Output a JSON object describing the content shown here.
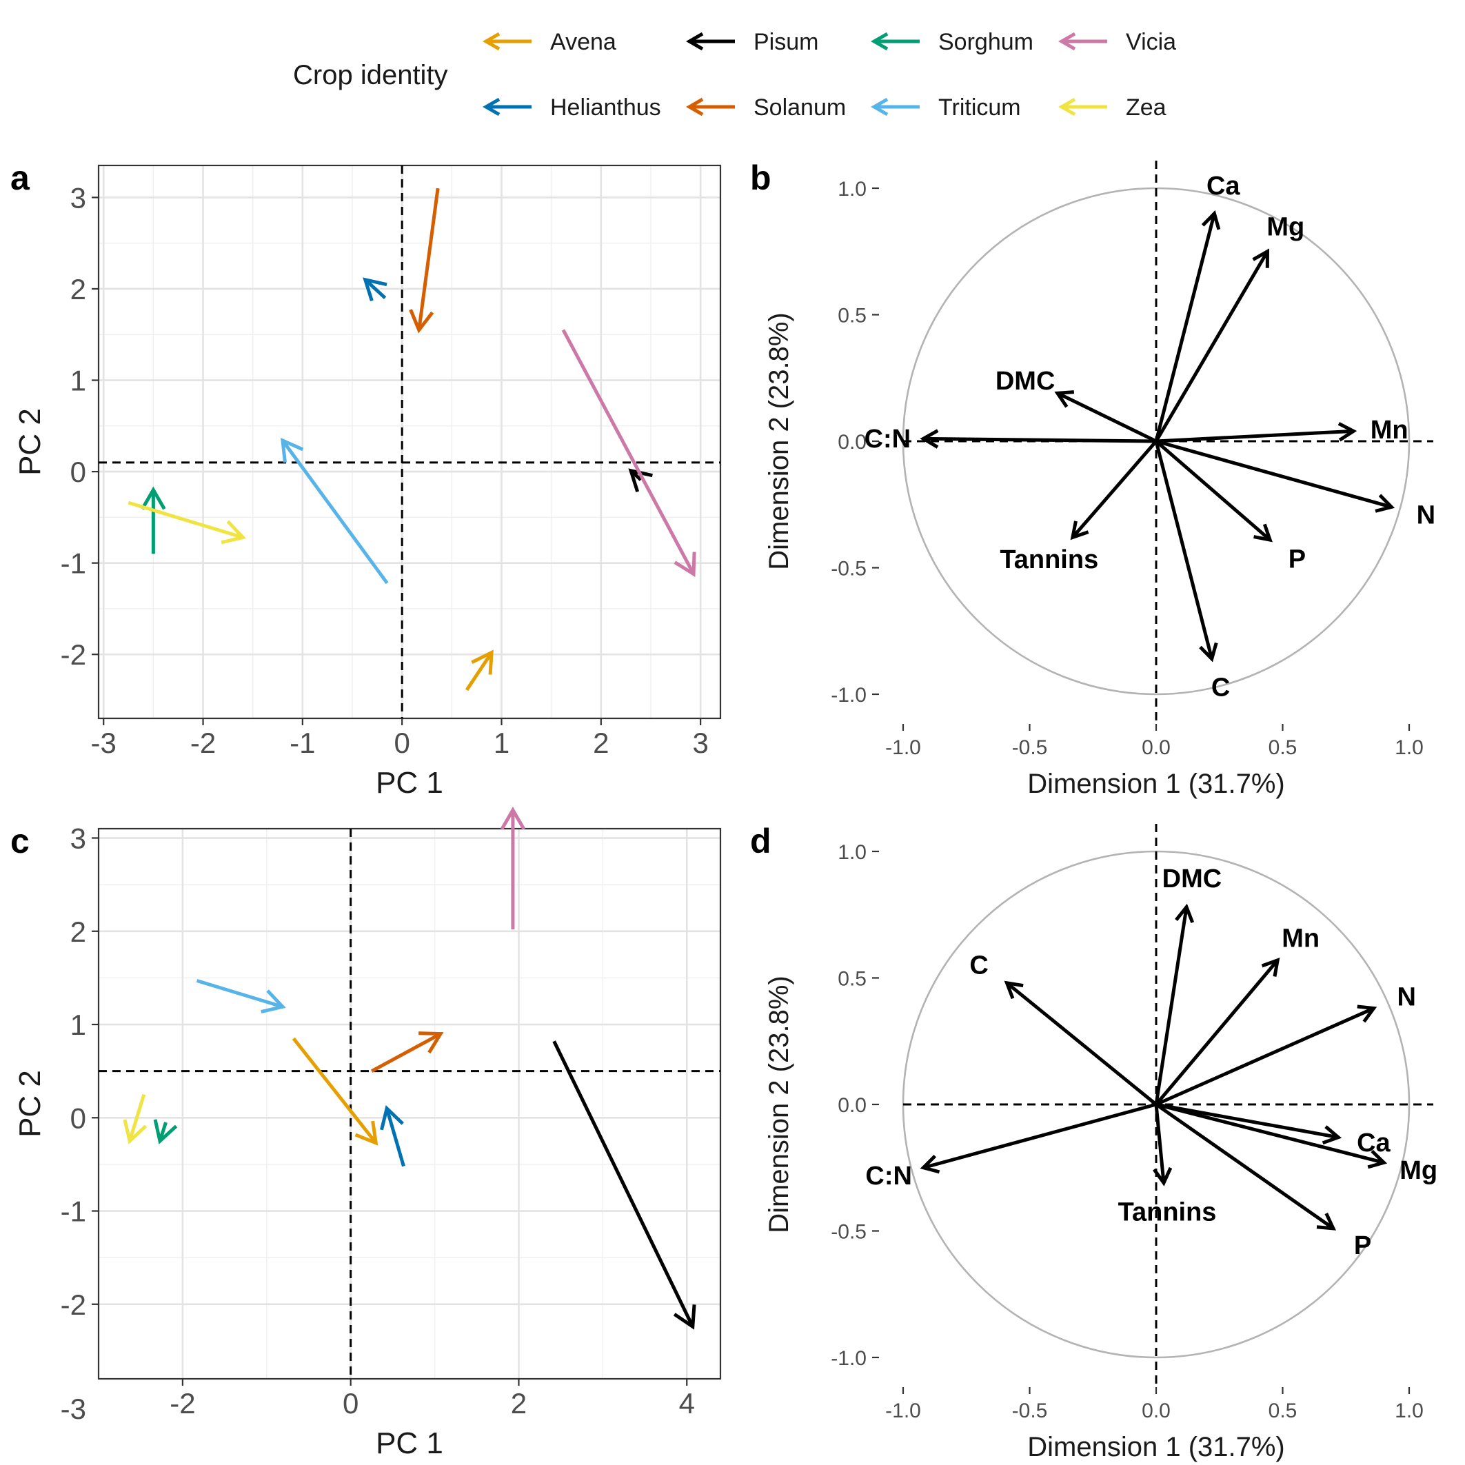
{
  "legend": {
    "title": "Crop identity",
    "items": [
      {
        "name": "Avena",
        "color": "#E69F00"
      },
      {
        "name": "Pisum",
        "color": "#000000"
      },
      {
        "name": "Sorghum",
        "color": "#009E73"
      },
      {
        "name": "Vicia",
        "color": "#CC79A7"
      },
      {
        "name": "Helianthus",
        "color": "#0072B2"
      },
      {
        "name": "Solanum",
        "color": "#D55E00"
      },
      {
        "name": "Triticum",
        "color": "#56B4E9"
      },
      {
        "name": "Zea",
        "color": "#F0E442"
      }
    ]
  },
  "chart_data": [
    {
      "panel": "a",
      "type": "scatter",
      "subtype": "arrows",
      "xlabel": "PC 1",
      "ylabel": "PC 2",
      "xlim": [
        -3.05,
        3.2
      ],
      "ylim": [
        -2.3,
        3.75
      ],
      "xticks": [
        -3,
        -2,
        -1,
        0,
        1,
        2,
        3
      ],
      "yticks": [
        {
          "value": 3.4,
          "label": "3"
        },
        {
          "value": 2.4,
          "label": "2"
        },
        {
          "value": 1.4,
          "label": "1"
        },
        {
          "value": 0.4,
          "label": "0"
        },
        {
          "value": -0.6,
          "label": "-1"
        },
        {
          "value": -1.6,
          "label": "-2"
        }
      ],
      "ref_lines": {
        "x": 0,
        "y": 0.5
      },
      "grid": true,
      "series": [
        {
          "name": "Avena",
          "from": [
            0.65,
            -1.99
          ],
          "to": [
            0.9,
            -1.58
          ]
        },
        {
          "name": "Pisum",
          "from": [
            2.4,
            0.31
          ],
          "to": [
            2.3,
            0.41
          ]
        },
        {
          "name": "Sorghum",
          "from": [
            -2.5,
            -0.5
          ],
          "to": [
            -2.5,
            0.2
          ]
        },
        {
          "name": "Vicia",
          "from": [
            1.62,
            1.95
          ],
          "to": [
            2.93,
            -0.72
          ]
        },
        {
          "name": "Helianthus",
          "from": [
            -0.17,
            2.3
          ],
          "to": [
            -0.37,
            2.5
          ]
        },
        {
          "name": "Solanum",
          "from": [
            0.36,
            3.5
          ],
          "to": [
            0.17,
            1.95
          ]
        },
        {
          "name": "Triticum",
          "from": [
            -0.15,
            -0.82
          ],
          "to": [
            -1.2,
            0.74
          ]
        },
        {
          "name": "Zea",
          "from": [
            -2.75,
            0.06
          ],
          "to": [
            -1.6,
            -0.32
          ]
        }
      ]
    },
    {
      "panel": "b",
      "type": "scatter",
      "subtype": "correlation-circle",
      "xlabel": "Dimension 1 (31.7%)",
      "ylabel": "Dimension 2 (23.8%)",
      "xticks": [
        {
          "value": -1,
          "label": "-1.0"
        },
        {
          "value": -0.5,
          "label": "-0.5"
        },
        {
          "value": 0,
          "label": "0.0"
        },
        {
          "value": 0.5,
          "label": "0.5"
        },
        {
          "value": 1,
          "label": "1.0"
        }
      ],
      "yticks": [
        {
          "value": 1,
          "label": "1.0"
        },
        {
          "value": 0.5,
          "label": "0.5"
        },
        {
          "value": 0,
          "label": "0.0"
        },
        {
          "value": -0.5,
          "label": "-0.5"
        },
        {
          "value": -1,
          "label": "-1.0"
        }
      ],
      "lim": [
        -1,
        1
      ],
      "variables": [
        {
          "name": "Ca",
          "x": 0.23,
          "y": 0.9
        },
        {
          "name": "Mg",
          "x": 0.44,
          "y": 0.75
        },
        {
          "name": "DMC",
          "x": -0.39,
          "y": 0.19
        },
        {
          "name": "C:N",
          "x": -0.92,
          "y": 0.01
        },
        {
          "name": "Mn",
          "x": 0.78,
          "y": 0.04
        },
        {
          "name": "N",
          "x": 0.93,
          "y": -0.26
        },
        {
          "name": "Tannins",
          "x": -0.33,
          "y": -0.38
        },
        {
          "name": "P",
          "x": 0.45,
          "y": -0.39
        },
        {
          "name": "C",
          "x": 0.22,
          "y": -0.86
        }
      ]
    },
    {
      "panel": "c",
      "type": "scatter",
      "subtype": "arrows",
      "xlabel": "PC 1",
      "ylabel": "PC 2",
      "xlim": [
        -3,
        4.4
      ],
      "ylim": [
        -2.8,
        3.1
      ],
      "xticks": [
        {
          "value": -2,
          "label": "-2"
        },
        {
          "value": 0,
          "label": "0"
        },
        {
          "value": 2,
          "label": "2"
        },
        {
          "value": 4,
          "label": "4"
        }
      ],
      "yticks": [
        {
          "value": 3,
          "label": "3"
        },
        {
          "value": 2,
          "label": "2"
        },
        {
          "value": 1,
          "label": "1"
        },
        {
          "value": 0,
          "label": "0"
        },
        {
          "value": -1,
          "label": "-1"
        },
        {
          "value": -2,
          "label": "-2"
        }
      ],
      "corner_label": "-3",
      "ref_lines": {
        "x": 0,
        "y": 0.5
      },
      "grid": true,
      "series": [
        {
          "name": "Avena",
          "from": [
            -0.68,
            0.85
          ],
          "to": [
            0.3,
            -0.27
          ]
        },
        {
          "name": "Pisum",
          "from": [
            2.42,
            0.82
          ],
          "to": [
            4.07,
            -2.24
          ]
        },
        {
          "name": "Sorghum",
          "from": [
            -2.2,
            -0.05
          ],
          "to": [
            -2.27,
            -0.25
          ]
        },
        {
          "name": "Vicia",
          "from": [
            1.93,
            2.02
          ],
          "to": [
            1.93,
            3.3
          ]
        },
        {
          "name": "Helianthus",
          "from": [
            0.63,
            -0.52
          ],
          "to": [
            0.43,
            0.1
          ]
        },
        {
          "name": "Solanum",
          "from": [
            0.25,
            0.5
          ],
          "to": [
            1.07,
            0.9
          ]
        },
        {
          "name": "Triticum",
          "from": [
            -1.83,
            1.47
          ],
          "to": [
            -0.81,
            1.19
          ]
        },
        {
          "name": "Zea",
          "from": [
            -2.46,
            0.25
          ],
          "to": [
            -2.63,
            -0.25
          ]
        }
      ]
    },
    {
      "panel": "d",
      "type": "scatter",
      "subtype": "correlation-circle",
      "xlabel": "Dimension 1 (31.7%)",
      "ylabel": "Dimension 2 (23.8%)",
      "xticks": [
        {
          "value": -1,
          "label": "-1.0"
        },
        {
          "value": -0.5,
          "label": "-0.5"
        },
        {
          "value": 0,
          "label": "0.0"
        },
        {
          "value": 0.5,
          "label": "0.5"
        },
        {
          "value": 1,
          "label": "1.0"
        }
      ],
      "yticks": [
        {
          "value": 1,
          "label": "1.0"
        },
        {
          "value": 0.5,
          "label": "0.5"
        },
        {
          "value": 0,
          "label": "0.0"
        },
        {
          "value": -0.5,
          "label": "-0.5"
        },
        {
          "value": -1,
          "label": "-1.0"
        }
      ],
      "lim": [
        -1,
        1
      ],
      "variables": [
        {
          "name": "DMC",
          "x": 0.12,
          "y": 0.78
        },
        {
          "name": "Mn",
          "x": 0.48,
          "y": 0.57
        },
        {
          "name": "C",
          "x": -0.59,
          "y": 0.48
        },
        {
          "name": "N",
          "x": 0.86,
          "y": 0.38
        },
        {
          "name": "Ca",
          "x": 0.72,
          "y": -0.13
        },
        {
          "name": "Mg",
          "x": 0.9,
          "y": -0.23
        },
        {
          "name": "C:N",
          "x": -0.92,
          "y": -0.25
        },
        {
          "name": "Tannins",
          "x": 0.03,
          "y": -0.31
        },
        {
          "name": "P",
          "x": 0.7,
          "y": -0.49
        }
      ]
    }
  ]
}
